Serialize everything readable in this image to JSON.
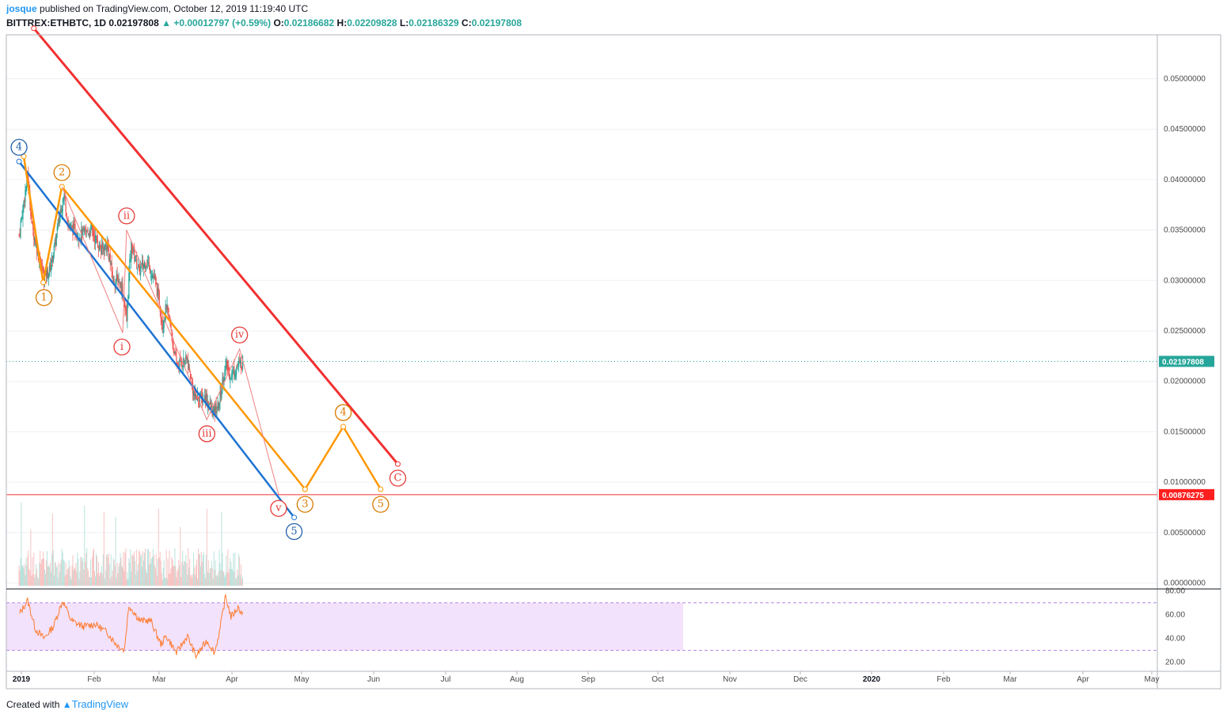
{
  "header": {
    "user": "josque",
    "published": "published on TradingView.com, October 12, 2019 11:19:40 UTC",
    "symbol": "BITTREX:ETHBTC, 1D",
    "last": "0.02197808",
    "change": "+0.00012797 (+0.59%)",
    "o_label": "O:",
    "o": "0.02186682",
    "h_label": "H:",
    "h": "0.02209828",
    "l_label": "L:",
    "l": "0.02186329",
    "c_label": "C:",
    "c": "0.02197808"
  },
  "footer": {
    "created_with": "Created with",
    "brand": "TradingView"
  },
  "chart_data": {
    "type": "candlestick",
    "symbol": "ETHBTC",
    "interval": "1D",
    "x_ticks": [
      "2019",
      "Feb",
      "Mar",
      "Apr",
      "May",
      "Jun",
      "Jul",
      "Aug",
      "Sep",
      "Oct",
      "Nov",
      "Dec",
      "2020",
      "Feb",
      "Mar",
      "Apr",
      "May"
    ],
    "y_ticks": [
      "0.05000000",
      "0.04500000",
      "0.04000000",
      "0.03500000",
      "0.03000000",
      "0.02500000",
      "0.02000000",
      "0.01500000",
      "0.01000000",
      "0.00500000",
      "0.00000000"
    ],
    "ylim": [
      0,
      0.054
    ],
    "last_price_label": "0.02197808",
    "horizontal_level_label": "0.00876275",
    "price_path": [
      {
        "date": "2018-12-28",
        "price": 0.0345
      },
      {
        "date": "2019-01-08",
        "price": 0.0405
      },
      {
        "date": "2019-01-14",
        "price": 0.0352
      },
      {
        "date": "2019-01-25",
        "price": 0.0315
      },
      {
        "date": "2019-01-29",
        "price": 0.0305
      },
      {
        "date": "2019-02-05",
        "price": 0.031
      },
      {
        "date": "2019-02-12",
        "price": 0.0335
      },
      {
        "date": "2019-02-19",
        "price": 0.037
      },
      {
        "date": "2019-02-24",
        "price": 0.0385
      },
      {
        "date": "2019-03-01",
        "price": 0.0355
      },
      {
        "date": "2019-03-15",
        "price": 0.0345
      },
      {
        "date": "2019-03-31",
        "price": 0.035
      },
      {
        "date": "2019-04-12",
        "price": 0.033
      },
      {
        "date": "2019-04-20",
        "price": 0.0335
      },
      {
        "date": "2019-04-28",
        "price": 0.03
      },
      {
        "date": "2019-05-05",
        "price": 0.03
      },
      {
        "date": "2019-05-10",
        "price": 0.029
      },
      {
        "date": "2019-05-15",
        "price": 0.026
      },
      {
        "date": "2019-05-18",
        "price": 0.0305
      },
      {
        "date": "2019-05-21",
        "price": 0.0335
      },
      {
        "date": "2019-05-31",
        "price": 0.031
      },
      {
        "date": "2019-06-10",
        "price": 0.032
      },
      {
        "date": "2019-06-20",
        "price": 0.03
      },
      {
        "date": "2019-06-26",
        "price": 0.028
      },
      {
        "date": "2019-06-30",
        "price": 0.0255
      },
      {
        "date": "2019-07-05",
        "price": 0.0275
      },
      {
        "date": "2019-07-10",
        "price": 0.0255
      },
      {
        "date": "2019-07-18",
        "price": 0.0215
      },
      {
        "date": "2019-07-25",
        "price": 0.022
      },
      {
        "date": "2019-08-01",
        "price": 0.022
      },
      {
        "date": "2019-08-10",
        "price": 0.0185
      },
      {
        "date": "2019-08-18",
        "price": 0.0182
      },
      {
        "date": "2019-08-24",
        "price": 0.0185
      },
      {
        "date": "2019-09-03",
        "price": 0.0168
      },
      {
        "date": "2019-09-10",
        "price": 0.0175
      },
      {
        "date": "2019-09-16",
        "price": 0.0205
      },
      {
        "date": "2019-09-20",
        "price": 0.0215
      },
      {
        "date": "2019-09-25",
        "price": 0.0205
      },
      {
        "date": "2019-10-04",
        "price": 0.0215
      },
      {
        "date": "2019-10-12",
        "price": 0.022
      }
    ],
    "trendlines": [
      {
        "color": "#1e73d2",
        "points": [
          {
            "date": "2018-12-28",
            "price": 0.0418
          },
          {
            "date": "2019-12-16",
            "price": 0.0065
          }
        ]
      },
      {
        "color": "#ff9800",
        "points": [
          {
            "date": "2019-02-21",
            "price": 0.0393
          },
          {
            "date": "2019-12-30",
            "price": 0.0093
          }
        ]
      },
      {
        "color": "#ff9800",
        "points": [
          {
            "date": "2019-01-03",
            "price": 0.0423
          },
          {
            "date": "2019-01-28",
            "price": 0.0298
          },
          {
            "date": "2019-02-21",
            "price": 0.0393
          }
        ]
      },
      {
        "color": "#ff9800",
        "points": [
          {
            "date": "2019-12-30",
            "price": 0.0093
          },
          {
            "date": "2020-02-17",
            "price": 0.0155
          },
          {
            "date": "2020-04-05",
            "price": 0.0093
          }
        ]
      },
      {
        "color": "#f23030",
        "points": [
          {
            "date": "2019-01-16",
            "price": 0.055
          },
          {
            "date": "2020-04-27",
            "price": 0.0118
          }
        ]
      },
      {
        "color": "#f08080",
        "points": [
          {
            "date": "2019-02-21",
            "price": 0.0393
          },
          {
            "date": "2019-05-10",
            "price": 0.0248
          },
          {
            "date": "2019-05-15",
            "price": 0.035
          },
          {
            "date": "2019-08-26",
            "price": 0.0162
          },
          {
            "date": "2019-10-07",
            "price": 0.0232
          },
          {
            "date": "2019-11-26",
            "price": 0.0088
          }
        ]
      }
    ],
    "wave_labels": [
      {
        "text": "4",
        "color": "#1e5fa8",
        "date": "2018-12-28",
        "price": 0.0432
      },
      {
        "text": "1",
        "color": "#d97a00",
        "date": "2019-01-29",
        "price": 0.0283
      },
      {
        "text": "2",
        "color": "#d97a00",
        "date": "2019-02-21",
        "price": 0.0407
      },
      {
        "text": "i",
        "color": "#e53935",
        "date": "2019-05-09",
        "price": 0.0234
      },
      {
        "text": "ii",
        "color": "#e53935",
        "date": "2019-05-15",
        "price": 0.0364
      },
      {
        "text": "iii",
        "color": "#e53935",
        "date": "2019-08-26",
        "price": 0.0148
      },
      {
        "text": "iv",
        "color": "#e53935",
        "date": "2019-10-07",
        "price": 0.0246
      },
      {
        "text": "v",
        "color": "#e53935",
        "date": "2019-11-26",
        "price": 0.0074
      },
      {
        "text": "5",
        "color": "#1e5fa8",
        "date": "2019-12-16",
        "price": 0.0051
      },
      {
        "text": "3",
        "color": "#d97a00",
        "date": "2019-12-30",
        "price": 0.0078
      },
      {
        "text": "4",
        "color": "#d97a00",
        "date": "2020-02-17",
        "price": 0.0169
      },
      {
        "text": "5",
        "color": "#d97a00",
        "date": "2020-04-05",
        "price": 0.0078
      },
      {
        "text": "C",
        "color": "#e53935",
        "date": "2020-04-27",
        "price": 0.0104
      }
    ],
    "rsi": {
      "y_ticks": [
        "80.00",
        "60.00",
        "40.00",
        "20.00"
      ],
      "ylim": [
        20,
        80
      ],
      "band": [
        30,
        70
      ],
      "points": [
        {
          "date": "2018-12-28",
          "value": 60
        },
        {
          "date": "2019-01-08",
          "value": 72
        },
        {
          "date": "2019-01-18",
          "value": 48
        },
        {
          "date": "2019-01-29",
          "value": 40
        },
        {
          "date": "2019-02-10",
          "value": 50
        },
        {
          "date": "2019-02-22",
          "value": 72
        },
        {
          "date": "2019-03-05",
          "value": 55
        },
        {
          "date": "2019-03-20",
          "value": 50
        },
        {
          "date": "2019-04-05",
          "value": 52
        },
        {
          "date": "2019-04-20",
          "value": 45
        },
        {
          "date": "2019-05-02",
          "value": 35
        },
        {
          "date": "2019-05-12",
          "value": 30
        },
        {
          "date": "2019-05-18",
          "value": 68
        },
        {
          "date": "2019-06-01",
          "value": 55
        },
        {
          "date": "2019-06-15",
          "value": 55
        },
        {
          "date": "2019-06-28",
          "value": 35
        },
        {
          "date": "2019-07-05",
          "value": 42
        },
        {
          "date": "2019-07-18",
          "value": 28
        },
        {
          "date": "2019-08-01",
          "value": 42
        },
        {
          "date": "2019-08-12",
          "value": 25
        },
        {
          "date": "2019-08-26",
          "value": 38
        },
        {
          "date": "2019-09-05",
          "value": 28
        },
        {
          "date": "2019-09-12",
          "value": 48
        },
        {
          "date": "2019-09-19",
          "value": 76
        },
        {
          "date": "2019-09-26",
          "value": 58
        },
        {
          "date": "2019-10-05",
          "value": 66
        },
        {
          "date": "2019-10-12",
          "value": 60
        }
      ]
    },
    "colors": {
      "up": "#26a69a",
      "down": "#ef5350",
      "rsi_line": "#ff7a2e",
      "rsi_band": "#f2e2fb",
      "price_tag": "#26a69a",
      "level_tag": "#ff1f1f"
    }
  }
}
